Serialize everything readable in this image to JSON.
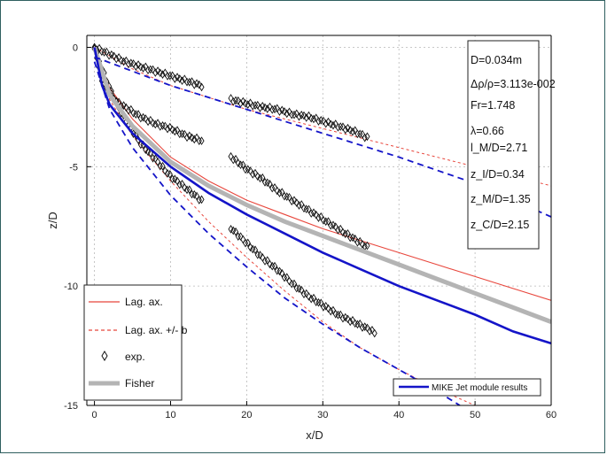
{
  "chart_data": {
    "type": "line",
    "xlabel": "x/D",
    "ylabel": "z/D",
    "xlim": [
      -1,
      60
    ],
    "ylim": [
      -15,
      0.5
    ],
    "x_ticks": [
      0,
      10,
      20,
      30,
      40,
      50,
      60
    ],
    "y_ticks": [
      0,
      -5,
      -10,
      -15
    ],
    "params": [
      "D=0.034m",
      "Δρ/ρ=3.113e-002",
      "Fr=1.748",
      "λ=0.66",
      "l_M/D=2.71",
      "z_I/D=0.34",
      "z_M/D=1.35",
      "z_C/D=2.15"
    ],
    "legend": [
      "Lag. ax.",
      "Lag. ax. +/- b",
      "exp.",
      "Fisher"
    ],
    "legend2": [
      "MIKE Jet module results"
    ],
    "series": [
      {
        "name": "Lag. ax.",
        "style": "solid",
        "color": "#e8463c",
        "x": [
          0,
          2,
          5,
          10,
          15,
          20,
          25,
          30,
          35,
          40,
          45,
          50,
          55,
          60
        ],
        "y": [
          0,
          -1.7,
          -3.0,
          -4.6,
          -5.6,
          -6.4,
          -7.0,
          -7.6,
          -8.1,
          -8.6,
          -9.1,
          -9.6,
          -10.1,
          -10.6
        ]
      },
      {
        "name": "Lag. ax. + b",
        "style": "dashed",
        "color": "#e8463c",
        "x": [
          0,
          5,
          10,
          20,
          30,
          40,
          50,
          60
        ],
        "y": [
          0,
          -0.9,
          -1.6,
          -2.6,
          -3.4,
          -4.2,
          -5.0,
          -5.8
        ]
      },
      {
        "name": "Lag. ax. - b",
        "style": "dashed",
        "color": "#e8463c",
        "x": [
          0,
          2,
          5,
          10,
          15,
          20,
          25,
          30,
          35,
          40,
          45,
          50
        ],
        "y": [
          0,
          -2.2,
          -3.7,
          -5.6,
          -7.3,
          -8.8,
          -10.2,
          -11.5,
          -12.6,
          -13.5,
          -14.3,
          -15.0
        ]
      },
      {
        "name": "exp. upper",
        "style": "markers",
        "x": [
          0,
          2,
          4,
          6,
          8,
          10,
          12,
          14,
          18,
          20,
          22,
          24,
          26,
          28,
          30,
          32,
          34,
          36
        ],
        "y": [
          0,
          -0.3,
          -0.6,
          -0.8,
          -1.0,
          -1.2,
          -1.4,
          -1.6,
          -2.2,
          -2.35,
          -2.5,
          -2.6,
          -2.8,
          -2.9,
          -3.1,
          -3.3,
          -3.5,
          -3.8
        ]
      },
      {
        "name": "exp. axis",
        "style": "markers",
        "x": [
          0,
          1,
          2,
          3,
          4,
          5,
          6,
          8,
          10,
          12,
          14,
          18,
          20,
          22,
          24,
          26,
          28,
          30,
          32,
          34,
          36
        ],
        "y": [
          0,
          -1.4,
          -1.9,
          -2.3,
          -2.5,
          -2.7,
          -2.9,
          -3.2,
          -3.4,
          -3.7,
          -3.9,
          -4.6,
          -5.1,
          -5.5,
          -6.0,
          -6.4,
          -6.8,
          -7.2,
          -7.6,
          -8.0,
          -8.4
        ]
      },
      {
        "name": "exp. lower",
        "style": "markers",
        "x": [
          0,
          1,
          2,
          3,
          4,
          5,
          6,
          8,
          10,
          12,
          14,
          18,
          20,
          22,
          24,
          26,
          28,
          30,
          32,
          34,
          36,
          37
        ],
        "y": [
          0,
          -0.9,
          -1.7,
          -2.4,
          -3.0,
          -3.5,
          -4.0,
          -4.7,
          -5.4,
          -5.9,
          -6.4,
          -7.6,
          -8.2,
          -8.8,
          -9.3,
          -9.9,
          -10.4,
          -10.8,
          -11.2,
          -11.5,
          -11.8,
          -12.0
        ]
      },
      {
        "name": "Fisher",
        "style": "thick",
        "color": "#b4b4b4",
        "x": [
          0,
          2,
          5,
          10,
          15,
          20,
          25,
          30,
          35,
          40,
          45,
          50,
          55,
          60
        ],
        "y": [
          0,
          -2.0,
          -3.3,
          -4.8,
          -5.8,
          -6.6,
          -7.3,
          -7.9,
          -8.5,
          -9.1,
          -9.7,
          -10.3,
          -10.9,
          -11.5
        ]
      },
      {
        "name": "MIKE axis",
        "style": "solid",
        "color": "#1414c8",
        "x": [
          0,
          1,
          2,
          5,
          10,
          15,
          20,
          25,
          30,
          35,
          40,
          45,
          50,
          55,
          60
        ],
        "y": [
          0,
          -1.6,
          -2.4,
          -3.6,
          -5.0,
          -6.1,
          -7.0,
          -7.8,
          -8.6,
          -9.3,
          -10.0,
          -10.6,
          -11.2,
          -11.9,
          -12.4
        ]
      },
      {
        "name": "MIKE upper",
        "style": "dashed",
        "color": "#1414c8",
        "x": [
          0,
          10,
          20,
          30,
          40,
          50,
          60
        ],
        "y": [
          -0.4,
          -1.6,
          -2.6,
          -3.6,
          -4.6,
          -5.7,
          -7.1
        ]
      },
      {
        "name": "MIKE lower",
        "style": "dashed",
        "color": "#1414c8",
        "x": [
          0,
          2,
          5,
          10,
          15,
          20,
          25,
          30,
          35,
          40,
          45,
          48
        ],
        "y": [
          -0.6,
          -2.6,
          -4.2,
          -6.2,
          -7.8,
          -9.2,
          -10.5,
          -11.6,
          -12.6,
          -13.5,
          -14.4,
          -15.0
        ]
      }
    ]
  }
}
